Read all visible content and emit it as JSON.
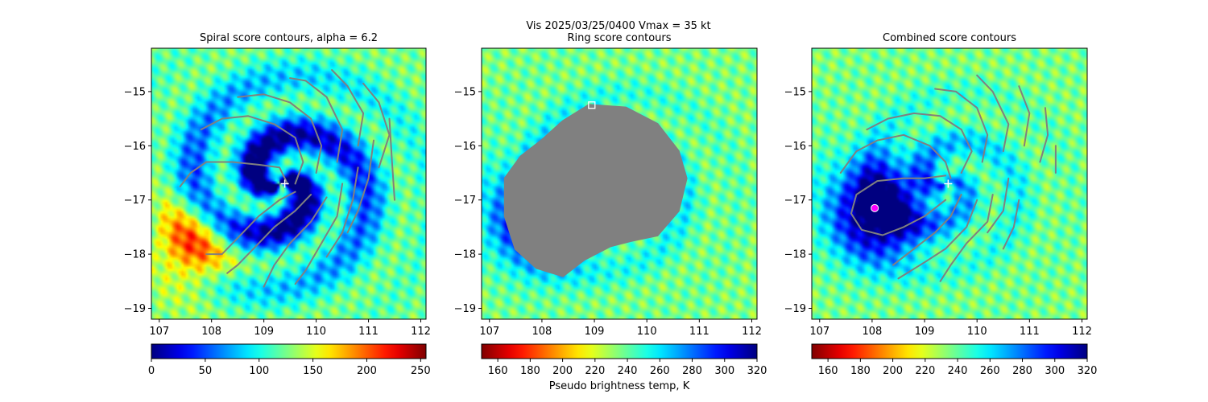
{
  "suptitle": "Vis  2025/03/25/0400    Vmax = 35 kt",
  "chart_data": [
    {
      "type": "heatmap",
      "title": "Spiral score contours, alpha =  6.2",
      "xlabel": "",
      "ylabel": "",
      "xlim": [
        106.85,
        112.1
      ],
      "ylim": [
        -19.2,
        -14.2
      ],
      "xticks": [
        "107",
        "108",
        "109",
        "110",
        "111",
        "112"
      ],
      "yticks": [
        "−15",
        "−16",
        "−17",
        "−18",
        "−19"
      ],
      "colormap": "jet",
      "colorbar": {
        "range": [
          0,
          255
        ],
        "reversed": false,
        "ticks": [
          "0",
          "50",
          "100",
          "150",
          "200",
          "250"
        ],
        "label": ""
      },
      "background_fields": [
        {
          "lon": 109.3,
          "lat": -16.7,
          "sx": 3.0,
          "sy": 2.6,
          "w": 0.65,
          "spiral": true
        },
        {
          "lon": 107.6,
          "lat": -17.8,
          "sx": 1.1,
          "sy": 1.2,
          "w": -0.35
        }
      ],
      "contours": [
        [
          [
            109.45,
            -16.7
          ],
          [
            109.3,
            -16.4
          ],
          [
            108.9,
            -16.35
          ],
          [
            108.4,
            -16.3
          ],
          [
            107.9,
            -16.3
          ],
          [
            107.6,
            -16.5
          ],
          [
            107.4,
            -16.75
          ]
        ],
        [
          [
            109.6,
            -16.85
          ],
          [
            109.3,
            -17.0
          ],
          [
            108.9,
            -17.3
          ],
          [
            108.5,
            -17.7
          ],
          [
            108.2,
            -18.0
          ],
          [
            107.9,
            -18.0
          ]
        ],
        [
          [
            109.9,
            -16.9
          ],
          [
            109.6,
            -17.2
          ],
          [
            109.2,
            -17.5
          ],
          [
            108.8,
            -17.9
          ],
          [
            108.5,
            -18.2
          ],
          [
            108.3,
            -18.35
          ]
        ],
        [
          [
            110.2,
            -16.95
          ],
          [
            109.9,
            -17.4
          ],
          [
            109.5,
            -17.8
          ],
          [
            109.2,
            -18.2
          ],
          [
            109.0,
            -18.6
          ]
        ],
        [
          [
            110.5,
            -16.7
          ],
          [
            110.4,
            -17.3
          ],
          [
            110.1,
            -17.8
          ],
          [
            109.8,
            -18.3
          ],
          [
            109.6,
            -18.55
          ]
        ],
        [
          [
            110.8,
            -16.4
          ],
          [
            110.7,
            -17.0
          ],
          [
            110.5,
            -17.6
          ],
          [
            110.2,
            -18.05
          ]
        ],
        [
          [
            111.1,
            -15.9
          ],
          [
            111.0,
            -16.6
          ],
          [
            110.8,
            -17.2
          ],
          [
            110.6,
            -17.6
          ]
        ],
        [
          [
            111.4,
            -15.5
          ],
          [
            111.45,
            -16.3
          ],
          [
            111.5,
            -17.0
          ]
        ],
        [
          [
            109.6,
            -16.7
          ],
          [
            109.75,
            -16.3
          ],
          [
            109.6,
            -15.85
          ],
          [
            109.2,
            -15.6
          ],
          [
            108.7,
            -15.45
          ],
          [
            108.2,
            -15.5
          ],
          [
            107.8,
            -15.7
          ]
        ],
        [
          [
            110.0,
            -16.5
          ],
          [
            110.1,
            -16.0
          ],
          [
            109.9,
            -15.5
          ],
          [
            109.5,
            -15.2
          ],
          [
            109.0,
            -15.05
          ],
          [
            108.5,
            -15.1
          ]
        ],
        [
          [
            110.4,
            -16.3
          ],
          [
            110.5,
            -15.7
          ],
          [
            110.2,
            -15.1
          ],
          [
            109.8,
            -14.8
          ],
          [
            109.5,
            -14.75
          ]
        ],
        [
          [
            110.8,
            -16.0
          ],
          [
            110.9,
            -15.4
          ],
          [
            110.6,
            -14.9
          ],
          [
            110.3,
            -14.6
          ]
        ],
        [
          [
            111.2,
            -16.4
          ],
          [
            111.4,
            -15.8
          ],
          [
            111.2,
            -15.2
          ],
          [
            110.9,
            -14.85
          ]
        ]
      ],
      "markers": [
        {
          "lon": 109.4,
          "lat": -16.7,
          "shape": "plus",
          "color": "#ffffff"
        }
      ]
    },
    {
      "type": "heatmap",
      "title": "Ring score contours",
      "xlabel": "Pseudo brightness temp, K",
      "ylabel": "",
      "xlim": [
        106.85,
        112.1
      ],
      "ylim": [
        -19.2,
        -14.2
      ],
      "xticks": [
        "107",
        "108",
        "109",
        "110",
        "111",
        "112"
      ],
      "yticks": [
        "−15",
        "−16",
        "−17",
        "−18",
        "−19"
      ],
      "colormap": "jet",
      "colorbar": {
        "range": [
          150,
          320
        ],
        "reversed": true,
        "ticks": [
          "160",
          "180",
          "200",
          "220",
          "240",
          "260",
          "280",
          "300",
          "320"
        ],
        "label": "Pseudo brightness temp, K"
      },
      "background_fields": [
        {
          "lon": 108.0,
          "lat": -17.3,
          "sx": 1.3,
          "sy": 1.3,
          "w": -0.55
        },
        {
          "lon": 109.3,
          "lat": -16.7,
          "sx": 2.5,
          "sy": 2.2,
          "w": -0.3,
          "spiral": true
        }
      ],
      "gray_region": [
        [
          108.9,
          -15.25
        ],
        [
          109.6,
          -15.3
        ],
        [
          110.2,
          -15.6
        ],
        [
          110.6,
          -16.1
        ],
        [
          110.75,
          -16.6
        ],
        [
          110.6,
          -17.2
        ],
        [
          110.2,
          -17.65
        ],
        [
          109.7,
          -17.75
        ],
        [
          109.3,
          -17.85
        ],
        [
          108.8,
          -18.1
        ],
        [
          108.4,
          -18.4
        ],
        [
          107.9,
          -18.25
        ],
        [
          107.5,
          -17.9
        ],
        [
          107.3,
          -17.3
        ],
        [
          107.3,
          -16.6
        ],
        [
          107.6,
          -16.2
        ],
        [
          108.0,
          -15.9
        ],
        [
          108.4,
          -15.55
        ]
      ],
      "contours": [],
      "markers": [
        {
          "lon": 108.95,
          "lat": -15.25,
          "shape": "square",
          "color": "#ffffff"
        }
      ]
    },
    {
      "type": "heatmap",
      "title": "Combined score contours",
      "xlabel": "",
      "ylabel": "",
      "xlim": [
        106.85,
        112.1
      ],
      "ylim": [
        -19.2,
        -14.2
      ],
      "xticks": [
        "107",
        "108",
        "109",
        "110",
        "111",
        "112"
      ],
      "yticks": [
        "−15",
        "−16",
        "−17",
        "−18",
        "−19"
      ],
      "colormap": "jet",
      "colorbar": {
        "range": [
          150,
          320
        ],
        "reversed": true,
        "ticks": [
          "160",
          "180",
          "200",
          "220",
          "240",
          "260",
          "280",
          "300",
          "320"
        ],
        "label": ""
      },
      "background_fields": [
        {
          "lon": 108.1,
          "lat": -17.2,
          "sx": 1.25,
          "sy": 1.3,
          "w": -0.6
        },
        {
          "lon": 109.4,
          "lat": -16.7,
          "sx": 2.5,
          "sy": 2.2,
          "w": -0.25,
          "spiral": true
        }
      ],
      "contours": [
        [
          [
            109.4,
            -16.55
          ],
          [
            109.0,
            -16.6
          ],
          [
            108.6,
            -16.6
          ],
          [
            108.1,
            -16.65
          ],
          [
            107.7,
            -16.9
          ],
          [
            107.6,
            -17.25
          ],
          [
            107.8,
            -17.55
          ],
          [
            108.2,
            -17.65
          ],
          [
            108.6,
            -17.5
          ],
          [
            109.0,
            -17.3
          ],
          [
            109.4,
            -17.0
          ]
        ],
        [
          [
            109.5,
            -16.6
          ],
          [
            109.4,
            -16.3
          ],
          [
            109.1,
            -16.0
          ],
          [
            108.6,
            -15.8
          ],
          [
            108.1,
            -15.9
          ],
          [
            107.7,
            -16.1
          ],
          [
            107.4,
            -16.5
          ]
        ],
        [
          [
            109.7,
            -16.9
          ],
          [
            109.5,
            -17.3
          ],
          [
            109.2,
            -17.6
          ],
          [
            108.8,
            -17.9
          ],
          [
            108.4,
            -18.2
          ]
        ],
        [
          [
            110.0,
            -17.0
          ],
          [
            109.8,
            -17.5
          ],
          [
            109.4,
            -17.9
          ],
          [
            109.0,
            -18.15
          ],
          [
            108.5,
            -18.45
          ]
        ],
        [
          [
            110.3,
            -16.9
          ],
          [
            110.2,
            -17.4
          ],
          [
            109.8,
            -17.8
          ],
          [
            109.5,
            -18.2
          ],
          [
            109.3,
            -18.5
          ]
        ],
        [
          [
            110.6,
            -16.6
          ],
          [
            110.5,
            -17.2
          ],
          [
            110.2,
            -17.6
          ]
        ],
        [
          [
            109.7,
            -16.5
          ],
          [
            109.9,
            -16.1
          ],
          [
            109.7,
            -15.7
          ],
          [
            109.3,
            -15.45
          ],
          [
            108.8,
            -15.4
          ],
          [
            108.3,
            -15.5
          ],
          [
            107.9,
            -15.7
          ]
        ],
        [
          [
            110.1,
            -16.3
          ],
          [
            110.2,
            -15.8
          ],
          [
            110.0,
            -15.3
          ],
          [
            109.6,
            -15.0
          ],
          [
            109.2,
            -14.95
          ]
        ],
        [
          [
            110.5,
            -16.1
          ],
          [
            110.6,
            -15.6
          ],
          [
            110.3,
            -15.0
          ],
          [
            110.0,
            -14.7
          ]
        ],
        [
          [
            110.9,
            -16.0
          ],
          [
            111.0,
            -15.4
          ],
          [
            110.8,
            -14.9
          ]
        ],
        [
          [
            111.2,
            -16.3
          ],
          [
            111.35,
            -15.8
          ],
          [
            111.3,
            -15.3
          ]
        ],
        [
          [
            111.5,
            -16.5
          ],
          [
            111.5,
            -16.0
          ]
        ],
        [
          [
            110.8,
            -17.0
          ],
          [
            110.7,
            -17.5
          ],
          [
            110.5,
            -17.9
          ]
        ]
      ],
      "markers": [
        {
          "lon": 109.45,
          "lat": -16.7,
          "shape": "plus",
          "color": "#ffffff"
        },
        {
          "lon": 108.05,
          "lat": -17.15,
          "shape": "circle",
          "color": "#ff00ff"
        }
      ]
    }
  ]
}
